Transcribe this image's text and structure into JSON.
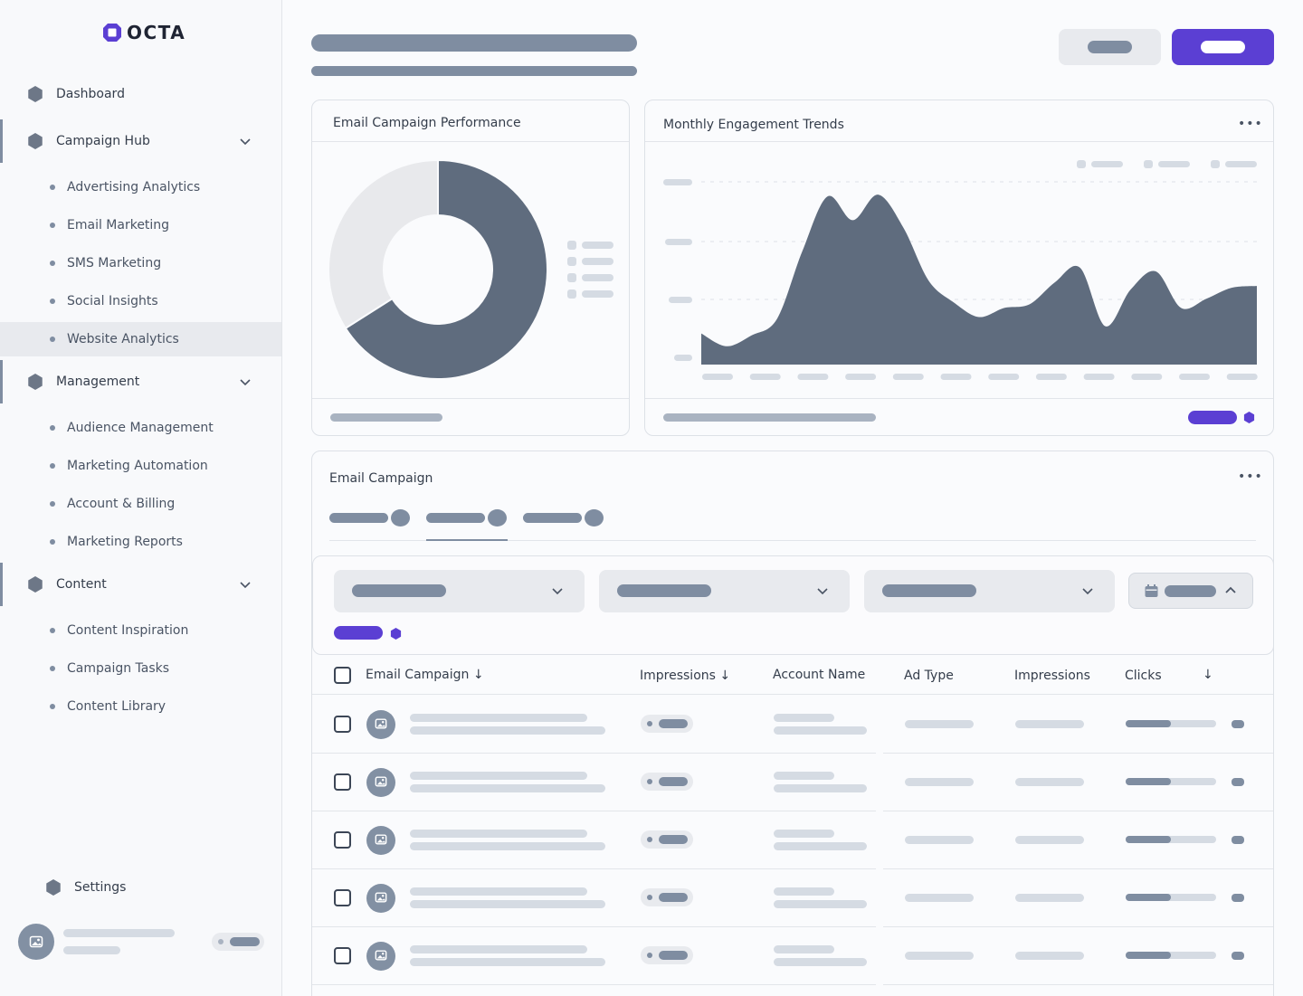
{
  "brand": {
    "name": "OCTA",
    "accent": "#5b3fd3"
  },
  "sidebar": {
    "items": [
      {
        "label": "Dashboard",
        "icon": "hexagon-icon"
      },
      {
        "label": "Campaign Hub",
        "icon": "hexagon-icon",
        "expanded": true,
        "children": [
          "Advertising Analytics",
          "Email Marketing",
          "SMS Marketing",
          "Social Insights",
          "Website Analytics"
        ]
      },
      {
        "label": "Management",
        "icon": "hexagon-icon",
        "expanded": true,
        "children": [
          "Audience Management",
          "Marketing Automation",
          "Account & Billing",
          "Marketing Reports"
        ]
      },
      {
        "label": "Content",
        "icon": "hexagon-icon",
        "expanded": true,
        "children": [
          "Content Inspiration",
          "Campaign Tasks",
          "Content Library"
        ]
      }
    ],
    "selected": "Website Analytics",
    "settings_label": "Settings"
  },
  "cards": {
    "donut": {
      "title": "Email Campaign Performance"
    },
    "trends": {
      "title": "Monthly Engagement Trends"
    },
    "table": {
      "title": "Email Campaign"
    }
  },
  "table": {
    "columns": [
      "Email Campaign",
      "Impressions",
      "Account Name",
      "Ad Type",
      "Impressions",
      "Clicks"
    ],
    "row_count": 5
  },
  "icons": {
    "more": "more-horizontal-icon",
    "chevron": "chevron-down-icon",
    "calendar": "calendar-icon",
    "image": "image-icon"
  },
  "colors": {
    "chart_fill": "#5f6c7e",
    "donut_track": "#e8e9ec",
    "primary": "#5b3fd3"
  },
  "chart_data": [
    {
      "type": "pie",
      "values": [
        66,
        34
      ]
    },
    {
      "type": "area",
      "x": [
        1,
        2,
        3,
        4,
        5,
        6,
        7,
        8,
        9,
        10,
        11,
        12,
        13,
        14,
        15,
        16,
        17,
        18,
        19,
        20,
        21,
        22,
        23
      ],
      "values": [
        17,
        10,
        16,
        25,
        62,
        92,
        79,
        93,
        75,
        46,
        34,
        26,
        31,
        33,
        45,
        53,
        21,
        41,
        51,
        31,
        36,
        42,
        43
      ],
      "ylim": [
        0,
        100
      ]
    }
  ]
}
